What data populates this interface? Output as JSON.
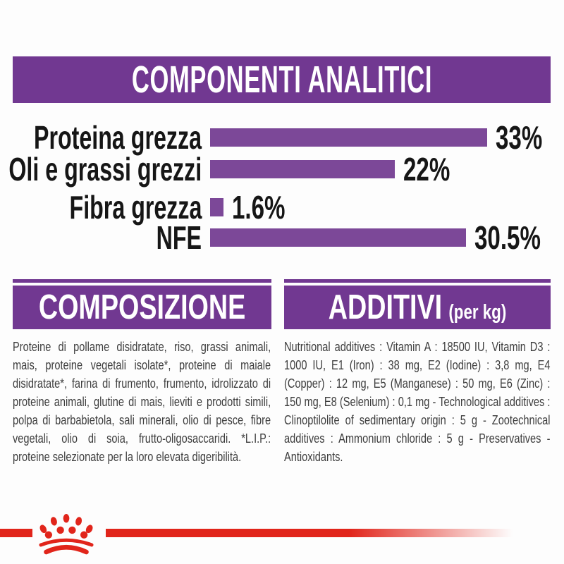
{
  "header": {
    "title": "COMPONENTI ANALITICI"
  },
  "chart_data": {
    "type": "bar",
    "orientation": "horizontal",
    "title": "COMPONENTI ANALITICI",
    "categories": [
      "Proteina grezza",
      "Oli e grassi grezzi",
      "Fibra grezza",
      "NFE"
    ],
    "values": [
      33,
      22,
      1.6,
      30.5
    ],
    "value_labels": [
      "33%",
      "22%",
      "1.6%",
      "30.5%"
    ],
    "xlim": [
      0,
      35
    ],
    "grid": false,
    "legend": false,
    "bar_color": "#7c4898",
    "label_color": "#161616"
  },
  "composition": {
    "title": "COMPOSIZIONE",
    "body": "Proteine di pollame disidratate, riso, grassi animali, mais, proteine vegetali isolate*, proteine di maiale disidratate*, farina di frumento, frumento, idrolizzato di proteine animali, glutine di mais, lieviti e prodotti simili, polpa di barbabietola, sali minerali, olio di pesce, fibre vegetali, olio di soia, frutto-oligosaccaridi. *L.I.P.: proteine selezionate per la loro elevata digeribilità."
  },
  "additives": {
    "title": "ADDITIVI",
    "subtitle": "(per kg)",
    "body": "Nutritional additives : Vitamin A : 18500 IU, Vitamin D3 : 1000 IU, E1 (Iron) : 38 mg, E2 (Iodine) : 3,8 mg, E4 (Copper) : 12 mg, E5 (Manganese) : 50 mg, E6 (Zinc) : 150 mg, E8 (Selenium) : 0,1 mg - Technological additives : Clinoptilolite of sedimentary origin : 5 g - Zootechnical additives : Ammonium chloride : 5 g - Preservatives - Antioxidants."
  },
  "footer": {
    "logo": "royal-canin-paw-crown"
  },
  "colors": {
    "banner_purple": "#713891",
    "bar_purple": "#7c4898",
    "accent_red": "#e1251b",
    "body_text": "#3d3d3d"
  }
}
